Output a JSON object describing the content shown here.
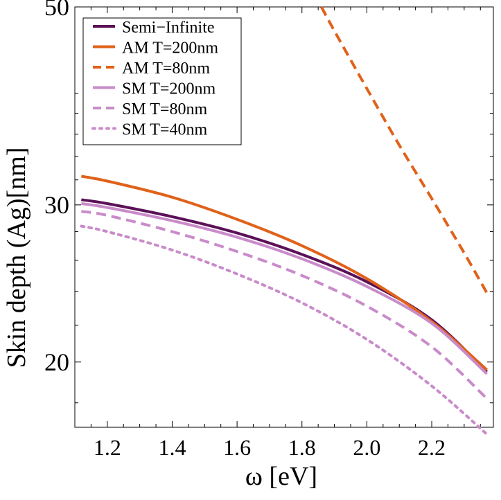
{
  "chart_data": {
    "type": "line",
    "title": "",
    "xlabel": "ω [eV]",
    "ylabel": "Skin depth (Ag)[nm]",
    "x_scale": "linear",
    "y_scale": "log",
    "xlim": [
      1.1,
      2.39
    ],
    "ylim": [
      16.9,
      50
    ],
    "x_ticks": [
      1.2,
      1.4,
      1.6,
      1.8,
      2.0,
      2.2
    ],
    "x_tick_labels": [
      "1.2",
      "1.4",
      "1.6",
      "1.8",
      "2.0",
      "2.2"
    ],
    "y_ticks": [
      20,
      30,
      50
    ],
    "y_tick_labels": [
      "20",
      "30",
      "50"
    ],
    "grid": false,
    "legend_position": "top-left",
    "series": [
      {
        "name": "Semi−Infinite",
        "color": "#5b1157",
        "dash": "solid",
        "x": [
          1.12,
          1.2,
          1.4,
          1.6,
          1.8,
          2.0,
          2.2,
          2.37
        ],
        "y": [
          30.4,
          30.1,
          29.1,
          27.9,
          26.4,
          24.6,
          22.3,
          19.5
        ]
      },
      {
        "name": "AM T=200nm",
        "color": "#e0621a",
        "dash": "solid",
        "x": [
          1.12,
          1.2,
          1.4,
          1.6,
          1.8,
          2.0,
          2.2,
          2.37
        ],
        "y": [
          32.3,
          31.9,
          30.6,
          28.9,
          27.0,
          24.8,
          22.2,
          19.6
        ]
      },
      {
        "name": "AM T=80nm",
        "color": "#e0621a",
        "dash": "dashed",
        "x": [
          1.86,
          1.9,
          2.0,
          2.1,
          2.2,
          2.3,
          2.37
        ],
        "y": [
          50.0,
          47.0,
          40.5,
          35.0,
          30.5,
          26.5,
          23.9
        ]
      },
      {
        "name": "SM T=200nm",
        "color": "#c98bc9",
        "dash": "solid",
        "x": [
          1.12,
          1.2,
          1.4,
          1.6,
          1.8,
          2.0,
          2.2,
          2.37
        ],
        "y": [
          30.1,
          29.8,
          28.8,
          27.6,
          26.1,
          24.3,
          22.1,
          19.4
        ]
      },
      {
        "name": "SM T=80nm",
        "color": "#c98bc9",
        "dash": "dashed",
        "x": [
          1.12,
          1.2,
          1.4,
          1.6,
          1.8,
          2.0,
          2.2,
          2.37
        ],
        "y": [
          29.5,
          29.2,
          28.0,
          26.6,
          25.0,
          23.1,
          20.8,
          18.2
        ]
      },
      {
        "name": "SM T=40nm",
        "color": "#c98bc9",
        "dash": "dotted",
        "x": [
          1.12,
          1.2,
          1.4,
          1.6,
          1.8,
          2.0,
          2.2,
          2.37
        ],
        "y": [
          28.4,
          28.0,
          26.7,
          25.1,
          23.3,
          21.2,
          18.8,
          16.6
        ]
      }
    ]
  }
}
